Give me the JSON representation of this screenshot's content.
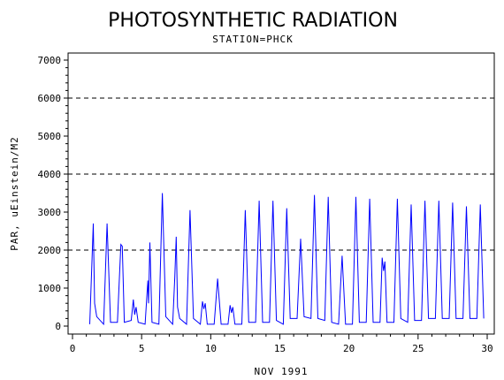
{
  "chart_data": {
    "type": "line",
    "title": "PHOTOSYNTHETIC RADIATION",
    "subtitle": "STATION=PHCK",
    "xlabel": "NOV 1991",
    "ylabel": "PAR, uEinstein/M2",
    "xlim": [
      0,
      30
    ],
    "ylim": [
      0,
      7000
    ],
    "x_ticks": [
      0,
      5,
      10,
      15,
      20,
      25,
      30
    ],
    "y_ticks": [
      0,
      1000,
      2000,
      3000,
      4000,
      5000,
      6000,
      7000
    ],
    "reference_lines": [
      2000,
      4000,
      6000
    ],
    "grid": false,
    "line_color": "#0000ff",
    "series": [
      {
        "x": [
          1.25,
          1.5,
          1.6,
          1.75,
          2.25,
          2.5,
          2.75,
          3.25,
          3.5,
          3.6,
          3.75,
          4.25,
          4.4,
          4.5,
          4.6,
          4.75,
          5.25,
          5.45,
          5.5,
          5.6,
          5.75,
          6.25,
          6.5,
          6.75,
          7.25,
          7.4,
          7.5,
          7.6,
          7.75,
          8.25,
          8.5,
          8.75,
          9.25,
          9.4,
          9.5,
          9.6,
          9.75,
          10.25,
          10.5,
          10.75,
          11.25,
          11.4,
          11.5,
          11.6,
          11.75,
          12.25,
          12.5,
          12.75,
          13.25,
          13.5,
          13.75,
          14.25,
          14.5,
          14.75,
          15.25,
          15.5,
          15.75,
          16.25,
          16.5,
          16.75,
          17.25,
          17.5,
          17.75,
          18.25,
          18.5,
          18.75,
          19.25,
          19.5,
          19.75,
          20.25,
          20.5,
          20.75,
          21.25,
          21.5,
          21.75,
          22.25,
          22.4,
          22.5,
          22.6,
          22.75,
          23.25,
          23.5,
          23.75,
          24.25,
          24.5,
          24.75,
          25.25,
          25.5,
          25.75,
          26.25,
          26.5,
          26.75,
          27.25,
          27.5,
          27.75,
          28.25,
          28.5,
          28.75,
          29.25,
          29.5,
          29.75
        ],
        "values": [
          50,
          2700,
          600,
          250,
          50,
          2700,
          100,
          100,
          2150,
          2100,
          100,
          150,
          700,
          300,
          500,
          100,
          50,
          1200,
          600,
          2200,
          100,
          50,
          3500,
          250,
          50,
          1300,
          2350,
          500,
          200,
          50,
          3050,
          200,
          50,
          650,
          450,
          600,
          50,
          50,
          1250,
          50,
          50,
          550,
          350,
          500,
          50,
          50,
          3050,
          100,
          100,
          3300,
          100,
          100,
          3300,
          150,
          50,
          3100,
          200,
          200,
          2300,
          250,
          200,
          3450,
          200,
          150,
          3400,
          100,
          50,
          1850,
          50,
          50,
          3400,
          100,
          100,
          3350,
          100,
          100,
          1800,
          1450,
          1700,
          100,
          100,
          3350,
          200,
          100,
          3200,
          150,
          150,
          3300,
          200,
          200,
          3300,
          200,
          200,
          3250,
          200,
          200,
          3150,
          200,
          200,
          3200,
          200
        ]
      }
    ]
  }
}
